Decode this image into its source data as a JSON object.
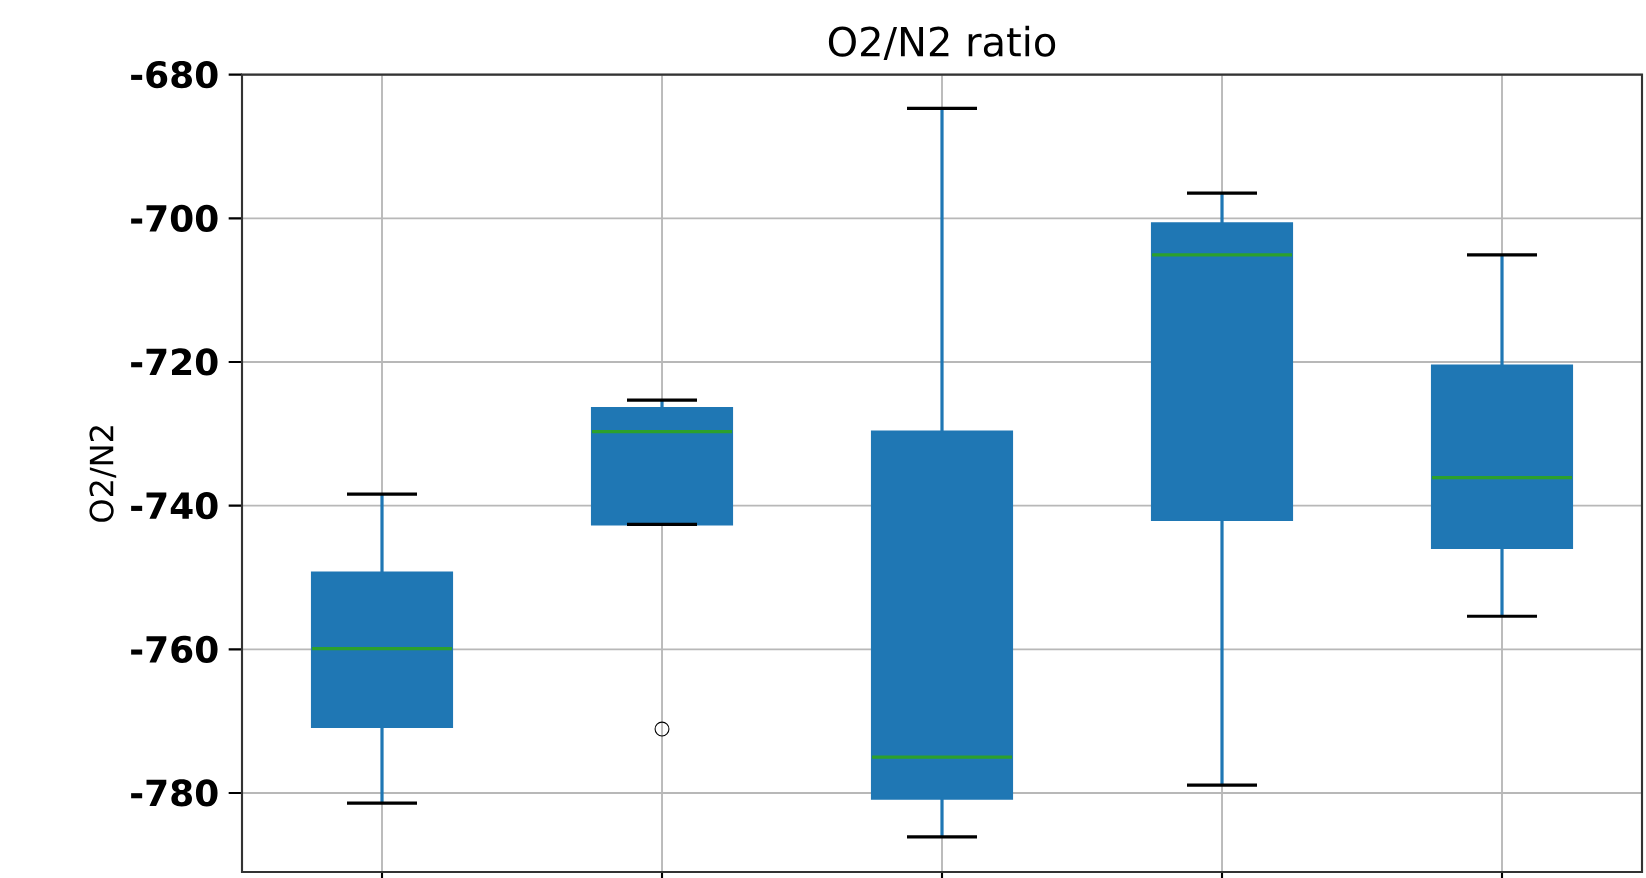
{
  "chart_data": {
    "type": "box",
    "title": "O2/N2 ratio",
    "ylabel": "O2/N2",
    "categories": [
      null,
      null,
      null,
      null,
      null
    ],
    "color": "#1f77b4",
    "boxes": [
      {
        "low": -781.4,
        "q1": -770.8,
        "median": -759.9,
        "q3": -749.3,
        "high": -738.4
      },
      {
        "low": -742.6,
        "q1": -742.6,
        "median": -729.7,
        "q3": -726.4,
        "high": -725.3,
        "outliers": [
          -771.1
        ]
      },
      {
        "low": -786.1,
        "q1": -780.8,
        "median": -775.0,
        "q3": -729.7,
        "high": -684.7
      },
      {
        "low": -778.9,
        "q1": -742.0,
        "median": -705.1,
        "q3": -700.7,
        "high": -696.5
      },
      {
        "low": -755.4,
        "q1": -745.9,
        "median": -736.1,
        "q3": -720.5,
        "high": -705.1
      }
    ],
    "ylim": [
      -791,
      -680
    ],
    "yticks": [
      -780,
      -760,
      -740,
      -720,
      -700,
      -680
    ],
    "grid": true,
    "tick_labels": "y"
  }
}
